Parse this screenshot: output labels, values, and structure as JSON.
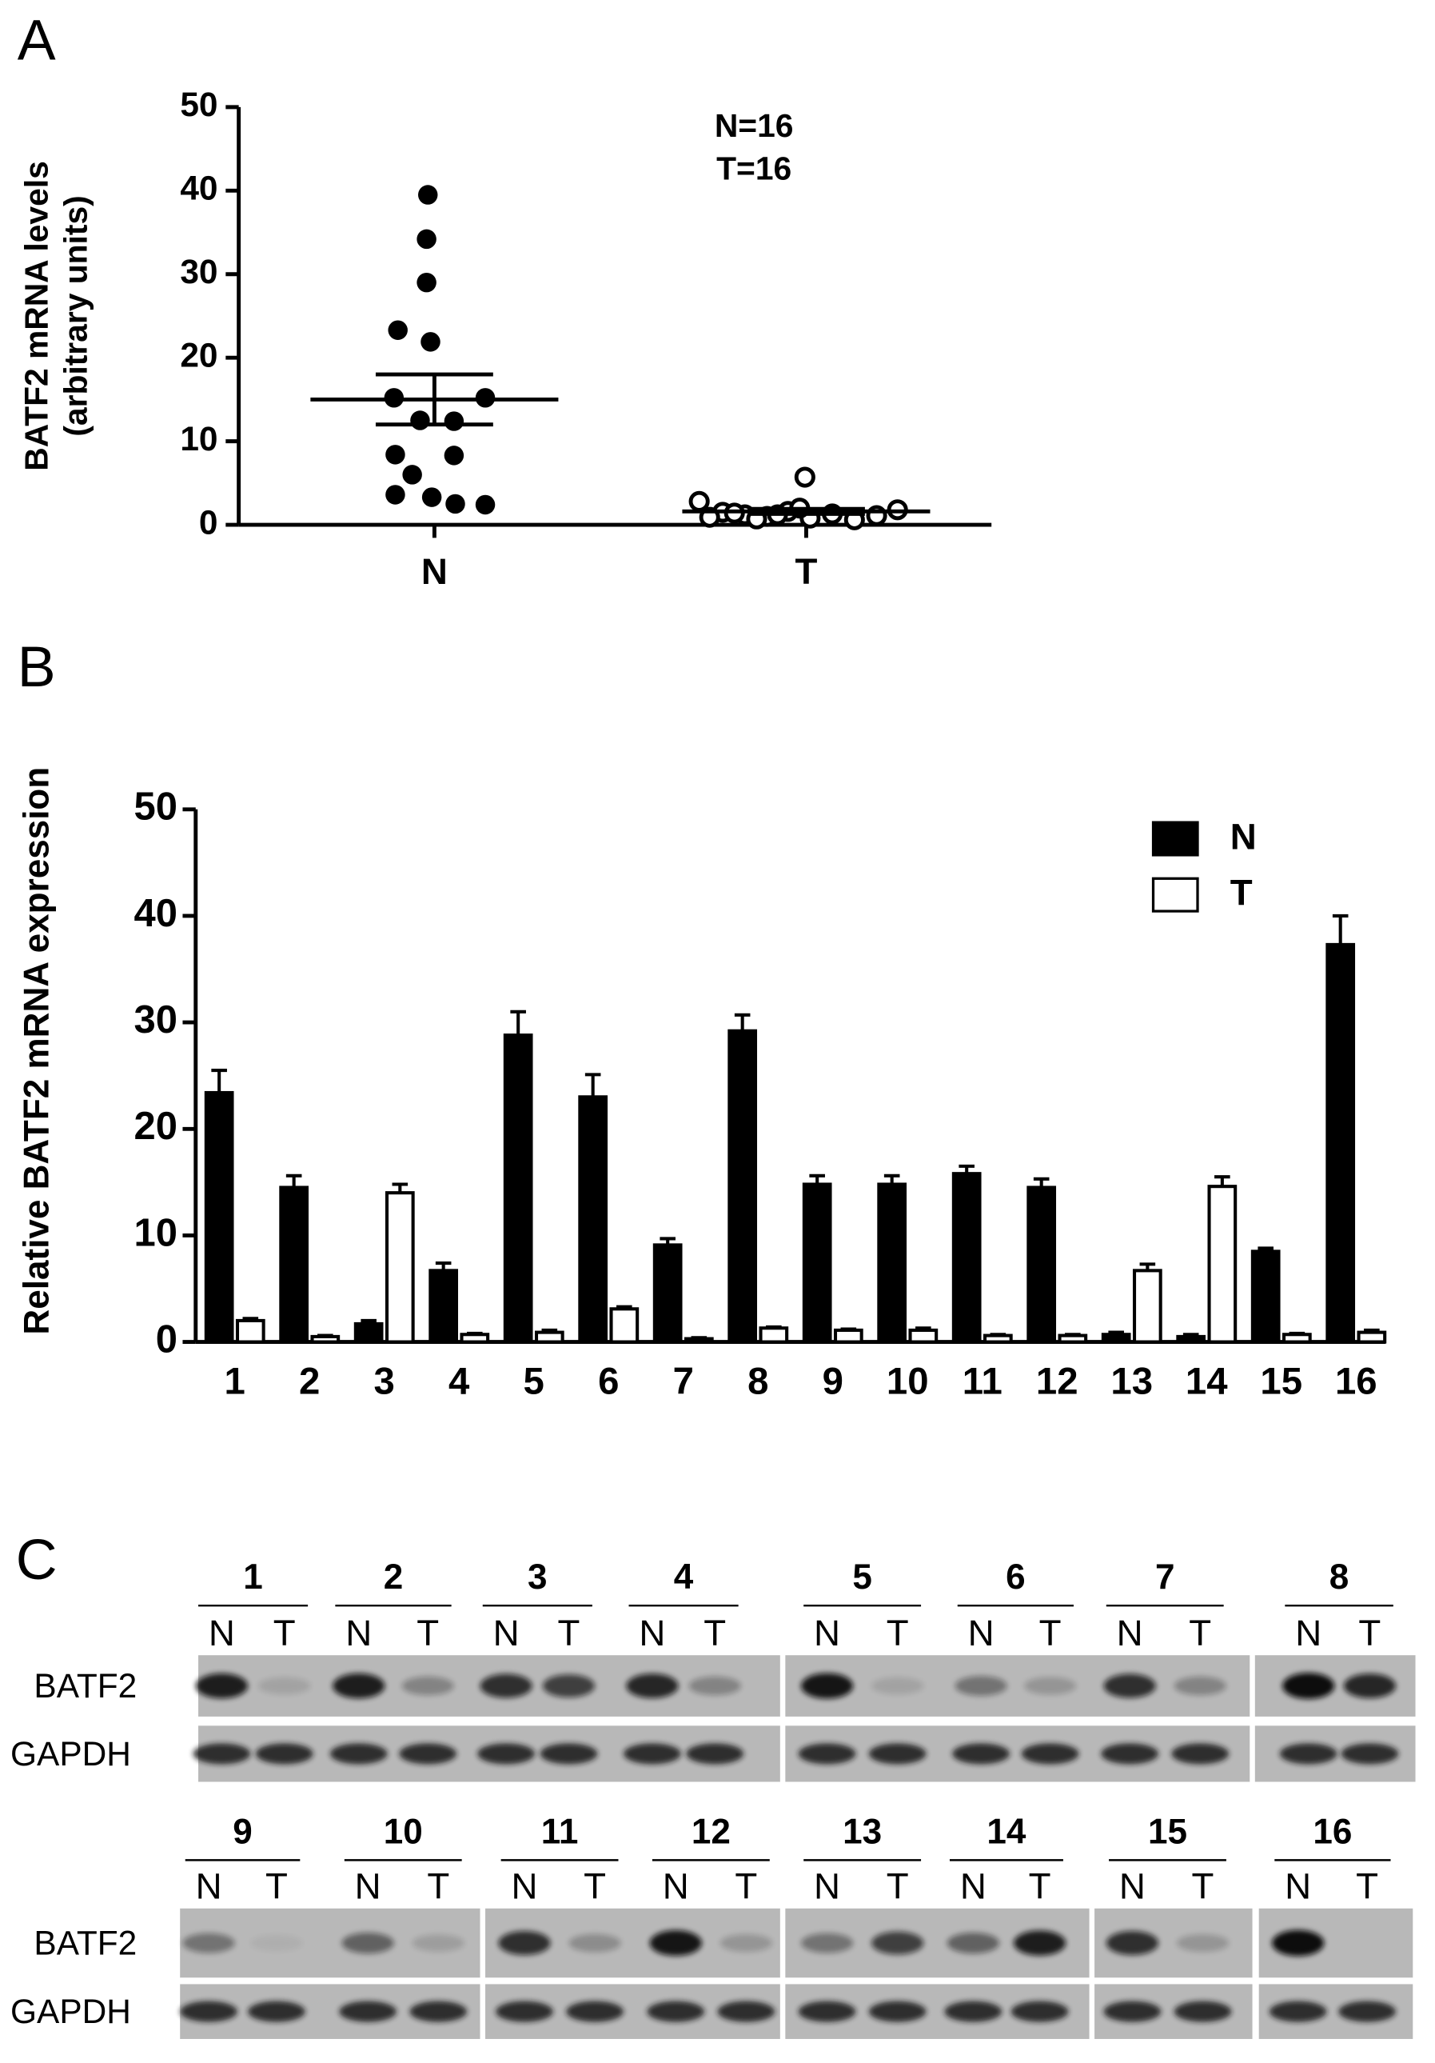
{
  "chart_data": [
    {
      "type": "dot",
      "panel": "A",
      "y_label": [
        "BATF2 mRNA levels",
        "(arbitrary units)"
      ],
      "annotations": [
        "N=16",
        "T=16"
      ],
      "categories": [
        "N",
        "T"
      ],
      "groups": [
        {
          "marker": "filled",
          "values": [
            39.5,
            34.2,
            29.0,
            23.3,
            21.9,
            15.2,
            15.2,
            12.5,
            12.4,
            8.4,
            8.3,
            3.6,
            3.3,
            2.5,
            2.4,
            6.0
          ],
          "mean": 15.0,
          "sem": 3.0
        },
        {
          "marker": "open",
          "values": [
            2.8,
            1.5,
            1.2,
            1.0,
            1.6,
            0.8,
            1.3,
            0.6,
            1.1,
            0.9,
            1.4,
            0.7,
            1.8,
            1.2,
            2.0,
            5.7
          ],
          "mean": 1.6,
          "sem": 0.3
        }
      ],
      "ylim": [
        0,
        50
      ],
      "yticks": [
        0,
        10,
        20,
        30,
        40,
        50
      ]
    },
    {
      "type": "bar",
      "panel": "B",
      "y_label": "Relative BATF2 mRNA expression",
      "categories": [
        "1",
        "2",
        "3",
        "4",
        "5",
        "6",
        "7",
        "8",
        "9",
        "10",
        "11",
        "12",
        "13",
        "14",
        "15",
        "16"
      ],
      "series": [
        {
          "name": "N",
          "color": "#000000",
          "values": [
            23.4,
            14.5,
            1.7,
            6.7,
            28.8,
            23.0,
            9.1,
            29.2,
            14.8,
            14.8,
            15.8,
            14.5,
            0.7,
            0.5,
            8.5,
            37.3
          ],
          "errors": [
            2.1,
            1.1,
            0.3,
            0.7,
            2.2,
            2.1,
            0.6,
            1.5,
            0.8,
            0.8,
            0.7,
            0.8,
            0.2,
            0.2,
            0.3,
            2.7
          ]
        },
        {
          "name": "T",
          "color": "#ffffff",
          "values": [
            2.0,
            0.5,
            14.0,
            0.7,
            0.9,
            3.1,
            0.3,
            1.3,
            1.1,
            1.1,
            0.6,
            0.6,
            6.7,
            14.6,
            0.7,
            0.9
          ],
          "errors": [
            0.2,
            0.1,
            0.8,
            0.1,
            0.2,
            0.2,
            0.1,
            0.1,
            0.1,
            0.2,
            0.1,
            0.1,
            0.6,
            0.9,
            0.1,
            0.2
          ]
        }
      ],
      "ylim": [
        0,
        50
      ],
      "yticks": [
        0,
        10,
        20,
        30,
        40,
        50
      ],
      "legend": "top-right"
    }
  ],
  "blot": {
    "panel": "C",
    "rows": [
      {
        "row_labels": [
          "BATF2",
          "GAPDH"
        ],
        "samples": [
          {
            "label": "1",
            "lanes": [
              "N",
              "T"
            ]
          },
          {
            "label": "2",
            "lanes": [
              "N",
              "T"
            ]
          },
          {
            "label": "3",
            "lanes": [
              "N",
              "T"
            ]
          },
          {
            "label": "4",
            "lanes": [
              "N",
              "T"
            ]
          },
          {
            "label": "5",
            "lanes": [
              "N",
              "T"
            ]
          },
          {
            "label": "6",
            "lanes": [
              "N",
              "T"
            ]
          },
          {
            "label": "7",
            "lanes": [
              "N",
              "T"
            ]
          },
          {
            "label": "8",
            "lanes": [
              "N",
              "T"
            ]
          }
        ]
      },
      {
        "row_labels": [
          "BATF2",
          "GAPDH"
        ],
        "samples": [
          {
            "label": "9",
            "lanes": [
              "N",
              "T"
            ]
          },
          {
            "label": "10",
            "lanes": [
              "N",
              "T"
            ]
          },
          {
            "label": "11",
            "lanes": [
              "N",
              "T"
            ]
          },
          {
            "label": "12",
            "lanes": [
              "N",
              "T"
            ]
          },
          {
            "label": "13",
            "lanes": [
              "N",
              "T"
            ]
          },
          {
            "label": "14",
            "lanes": [
              "N",
              "T"
            ]
          },
          {
            "label": "15",
            "lanes": [
              "N",
              "T"
            ]
          },
          {
            "label": "16",
            "lanes": [
              "N",
              "T"
            ]
          }
        ]
      }
    ]
  }
}
